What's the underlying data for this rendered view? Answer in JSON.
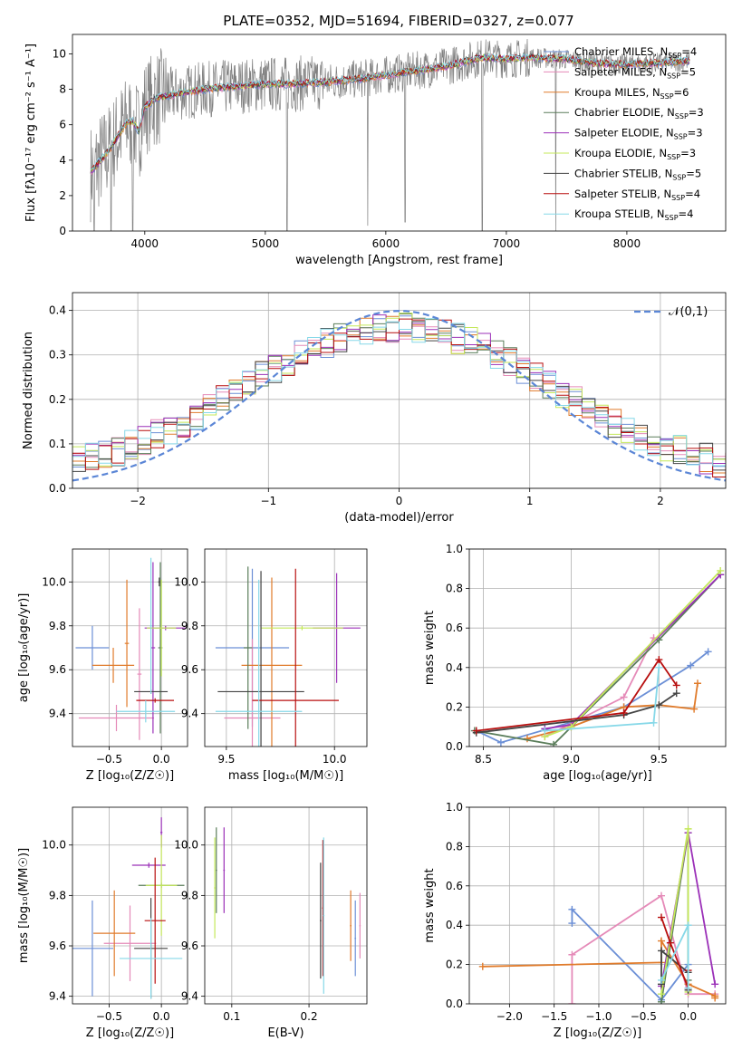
{
  "title": "PLATE=0352, MJD=51694, FIBERID=0327, z=0.077",
  "models": [
    {
      "name": "Chabrier MILES",
      "nssp": "4",
      "color": "#6b8fd6"
    },
    {
      "name": "Salpeter MILES",
      "nssp": "5",
      "color": "#e58ab8"
    },
    {
      "name": "Kroupa MILES",
      "nssp": "6",
      "color": "#e07b2b"
    },
    {
      "name": "Chabrier ELODIE",
      "nssp": "3",
      "color": "#5a7d5a"
    },
    {
      "name": "Salpeter ELODIE",
      "nssp": "3",
      "color": "#9b30b8"
    },
    {
      "name": "Kroupa ELODIE",
      "nssp": "3",
      "color": "#c4e85a"
    },
    {
      "name": "Chabrier STELIB",
      "nssp": "5",
      "color": "#444444"
    },
    {
      "name": "Salpeter STELIB",
      "nssp": "4",
      "color": "#b80f0f"
    },
    {
      "name": "Kroupa STELIB",
      "nssp": "4",
      "color": "#86d8e8"
    }
  ],
  "chart_data": [
    {
      "type": "line",
      "id": "spectrum",
      "xlabel": "wavelength [Angstrom, rest frame]",
      "ylabel": "Flux [f_λ10^-17 erg cm^-2 s^-1 A^-1]",
      "xlim": [
        3400,
        8820
      ],
      "ylim": [
        0,
        11.1
      ],
      "xticks": [
        4000,
        5000,
        6000,
        7000,
        8000
      ],
      "yticks": [
        0,
        2,
        4,
        6,
        8,
        10
      ],
      "grid": false,
      "legend": "right",
      "data_color": "#808080",
      "continuum": [
        [
          3550,
          3.3
        ],
        [
          3620,
          3.9
        ],
        [
          3700,
          4.5
        ],
        [
          3800,
          5.6
        ],
        [
          3850,
          6.1
        ],
        [
          3900,
          6.2
        ],
        [
          3950,
          5.6
        ],
        [
          4000,
          7.0
        ],
        [
          4100,
          7.5
        ],
        [
          4300,
          7.8
        ],
        [
          4500,
          8.0
        ],
        [
          4800,
          8.2
        ],
        [
          5000,
          8.3
        ],
        [
          5200,
          8.3
        ],
        [
          5500,
          8.4
        ],
        [
          5800,
          8.6
        ],
        [
          6000,
          8.8
        ],
        [
          6300,
          9.1
        ],
        [
          6500,
          9.3
        ],
        [
          6800,
          9.8
        ],
        [
          7000,
          9.7
        ],
        [
          7200,
          9.8
        ],
        [
          7500,
          9.7
        ],
        [
          7700,
          9.5
        ],
        [
          8000,
          9.4
        ],
        [
          8300,
          9.5
        ],
        [
          8500,
          9.6
        ]
      ],
      "dips": [
        [
          3580,
          0.0
        ],
        [
          3720,
          0.0
        ],
        [
          3900,
          0.0
        ],
        [
          5180,
          0.0
        ],
        [
          5850,
          0.3
        ],
        [
          6800,
          0.0
        ],
        [
          7410,
          0.0
        ],
        [
          6160,
          0.5
        ]
      ]
    },
    {
      "type": "bar",
      "id": "residuals",
      "xlabel": "(data-model)/error",
      "ylabel": "Normed distribution",
      "xlim": [
        -2.5,
        2.5
      ],
      "ylim": [
        0,
        0.44
      ],
      "xticks": [
        -2,
        -1,
        0,
        1,
        2
      ],
      "yticks": [
        0.0,
        0.1,
        0.2,
        0.3,
        0.4
      ],
      "grid": true,
      "legend": "top-right",
      "gaussian_label": "𝒩(0,1)",
      "gaussian_color": "#5b86d6",
      "bin_width": 0.1
    },
    {
      "type": "scatter",
      "id": "age_vs_Z",
      "xlabel": "Z [log10(Z/Z☉)]",
      "ylabel": "age  [log10(age/yr)]",
      "xlim": [
        -0.85,
        0.25
      ],
      "ylim": [
        9.25,
        10.15
      ],
      "xticks": [
        -0.5,
        0.0
      ],
      "yticks": [
        9.4,
        9.6,
        9.8,
        10.0
      ],
      "grid": true,
      "points": [
        {
          "model": 0,
          "x": -0.66,
          "y": 9.7,
          "ex": 0.16,
          "ey": 0.1
        },
        {
          "model": 1,
          "x": -0.43,
          "y": 9.38,
          "ex": 0.36,
          "ey": 0.06
        },
        {
          "model": 1,
          "x": -0.21,
          "y": 9.58,
          "ex": 0.02,
          "ey": 0.3
        },
        {
          "model": 2,
          "x": -0.46,
          "y": 9.62,
          "ex": 0.2,
          "ey": 0.08
        },
        {
          "model": 2,
          "x": -0.33,
          "y": 9.72,
          "ex": 0.02,
          "ey": 0.29
        },
        {
          "model": 3,
          "x": -0.01,
          "y": 9.7,
          "ex": 0.02,
          "ey": 0.39
        },
        {
          "model": 4,
          "x": 0.04,
          "y": 9.79,
          "ex": 0.2,
          "ey": 0.01
        },
        {
          "model": 4,
          "x": -0.08,
          "y": 9.7,
          "ex": 0.02,
          "ey": 0.39
        },
        {
          "model": 5,
          "x": 0.0,
          "y": 9.79,
          "ex": 0.14,
          "ey": 0.22
        },
        {
          "model": 6,
          "x": -0.1,
          "y": 9.5,
          "ex": 0.16,
          "ey": 0.01
        },
        {
          "model": 6,
          "x": -0.02,
          "y": 10.0,
          "ex": 0.01,
          "ey": 0.02
        },
        {
          "model": 7,
          "x": -0.06,
          "y": 9.46,
          "ex": 0.18,
          "ey": 0.01
        },
        {
          "model": 8,
          "x": -0.15,
          "y": 9.41,
          "ex": 0.28,
          "ey": 0.05
        },
        {
          "model": 8,
          "x": -0.1,
          "y": 9.8,
          "ex": 0.01,
          "ey": 0.31
        }
      ]
    },
    {
      "type": "scatter",
      "id": "age_vs_mass",
      "xlabel": "mass [log10(M/M☉)]",
      "ylabel": "",
      "xlim": [
        9.4,
        10.15
      ],
      "ylim": [
        9.25,
        10.15
      ],
      "xticks": [
        9.5,
        10.0
      ],
      "yticks": [
        9.4,
        9.6,
        9.8,
        10.0
      ],
      "grid": true,
      "points": [
        {
          "model": 0,
          "x": 9.62,
          "y": 9.7,
          "ex": 0.17,
          "ey": 0.36
        },
        {
          "model": 1,
          "x": 9.62,
          "y": 9.38,
          "ex": 0.13,
          "ey": 0.36
        },
        {
          "model": 2,
          "x": 9.71,
          "y": 9.62,
          "ex": 0.14,
          "ey": 0.4
        },
        {
          "model": 3,
          "x": 9.6,
          "y": 9.7,
          "ex": 0.02,
          "ey": 0.37
        },
        {
          "model": 4,
          "x": 10.01,
          "y": 9.79,
          "ex": 0.11,
          "ey": 0.25
        },
        {
          "model": 5,
          "x": 9.85,
          "y": 9.79,
          "ex": 0.19,
          "ey": 0.01
        },
        {
          "model": 6,
          "x": 9.66,
          "y": 9.5,
          "ex": 0.2,
          "ey": 0.55
        },
        {
          "model": 7,
          "x": 9.82,
          "y": 9.46,
          "ex": 0.2,
          "ey": 0.6
        },
        {
          "model": 8,
          "x": 9.65,
          "y": 9.41,
          "ex": 0.2,
          "ey": 0.6
        }
      ]
    },
    {
      "type": "line",
      "id": "weight_vs_age",
      "xlabel": "age  [log10(age/yr)]",
      "ylabel": "mass weight",
      "xlim": [
        8.42,
        9.88
      ],
      "ylim": [
        0,
        1.0
      ],
      "xticks": [
        8.5,
        9.0,
        9.5
      ],
      "yticks": [
        0.0,
        0.2,
        0.4,
        0.6,
        0.8,
        1.0
      ],
      "grid": true,
      "series": [
        {
          "model": 0,
          "x": [
            8.46,
            8.6,
            9.3,
            9.68,
            9.78
          ],
          "y": [
            0.08,
            0.02,
            0.2,
            0.41,
            0.48
          ]
        },
        {
          "model": 1,
          "x": [
            8.85,
            9.3,
            9.47
          ],
          "y": [
            0.05,
            0.25,
            0.55
          ]
        },
        {
          "model": 2,
          "x": [
            8.75,
            9.0,
            9.3,
            9.5,
            9.7,
            9.72
          ],
          "y": [
            0.04,
            0.1,
            0.2,
            0.21,
            0.19,
            0.32
          ]
        },
        {
          "model": 3,
          "x": [
            8.45,
            8.9,
            9.5,
            9.85
          ],
          "y": [
            0.08,
            0.01,
            0.54,
            0.87
          ]
        },
        {
          "model": 4,
          "x": [
            8.85,
            9.0,
            9.85
          ],
          "y": [
            0.09,
            0.11,
            0.87
          ]
        },
        {
          "model": 5,
          "x": [
            8.85,
            9.0,
            9.85
          ],
          "y": [
            0.05,
            0.1,
            0.89
          ]
        },
        {
          "model": 6,
          "x": [
            8.46,
            9.3,
            9.5,
            9.6
          ],
          "y": [
            0.07,
            0.16,
            0.21,
            0.27
          ]
        },
        {
          "model": 7,
          "x": [
            8.46,
            9.3,
            9.5,
            9.6
          ],
          "y": [
            0.08,
            0.17,
            0.44,
            0.31
          ]
        },
        {
          "model": 8,
          "x": [
            8.85,
            9.47,
            9.5
          ],
          "y": [
            0.08,
            0.12,
            0.4
          ]
        }
      ]
    },
    {
      "type": "scatter",
      "id": "mass_vs_Z",
      "xlabel": "Z [log10(Z/Z☉)]",
      "ylabel": "mass [log10(M/M☉)]",
      "xlim": [
        -0.85,
        0.25
      ],
      "ylim": [
        9.37,
        10.15
      ],
      "xticks": [
        -0.5,
        0.0
      ],
      "yticks": [
        9.4,
        9.6,
        9.8,
        10.0
      ],
      "grid": true,
      "points": [
        {
          "model": 0,
          "x": -0.66,
          "y": 9.59,
          "ex": 0.2,
          "ey": 0.19
        },
        {
          "model": 1,
          "x": -0.3,
          "y": 9.61,
          "ex": 0.25,
          "ey": 0.15
        },
        {
          "model": 2,
          "x": -0.45,
          "y": 9.65,
          "ex": 0.2,
          "ey": 0.17
        },
        {
          "model": 3,
          "x": 0.0,
          "y": 9.84,
          "ex": 0.22,
          "ey": 0.01
        },
        {
          "model": 4,
          "x": -0.12,
          "y": 9.92,
          "ex": 0.16,
          "ey": 0.01
        },
        {
          "model": 4,
          "x": 0.0,
          "y": 10.05,
          "ex": 0.01,
          "ey": 0.06
        },
        {
          "model": 5,
          "x": 0.0,
          "y": 9.84,
          "ex": 0.15,
          "ey": 0.2
        },
        {
          "model": 6,
          "x": -0.1,
          "y": 9.59,
          "ex": 0.16,
          "ey": 0.2
        },
        {
          "model": 7,
          "x": -0.06,
          "y": 9.7,
          "ex": 0.1,
          "ey": 0.25
        },
        {
          "model": 8,
          "x": -0.1,
          "y": 9.55,
          "ex": 0.3,
          "ey": 0.16
        }
      ]
    },
    {
      "type": "scatter",
      "id": "mass_vs_ebv",
      "xlabel": "E(B-V)",
      "ylabel": "",
      "xlim": [
        0.065,
        0.275
      ],
      "ylim": [
        9.37,
        10.15
      ],
      "xticks": [
        0.1,
        0.2
      ],
      "yticks": [
        9.4,
        9.6,
        9.8,
        10.0
      ],
      "grid": true,
      "points": [
        {
          "model": 0,
          "x": 0.26,
          "y": 9.63,
          "ex": 0.001,
          "ey": 0.15
        },
        {
          "model": 1,
          "x": 0.266,
          "y": 9.68,
          "ex": 0.001,
          "ey": 0.13
        },
        {
          "model": 2,
          "x": 0.254,
          "y": 9.68,
          "ex": 0.001,
          "ey": 0.14
        },
        {
          "model": 3,
          "x": 0.08,
          "y": 9.9,
          "ex": 0.001,
          "ey": 0.17
        },
        {
          "model": 4,
          "x": 0.09,
          "y": 9.9,
          "ex": 0.001,
          "ey": 0.17
        },
        {
          "model": 5,
          "x": 0.078,
          "y": 9.83,
          "ex": 0.001,
          "ey": 0.2
        },
        {
          "model": 6,
          "x": 0.215,
          "y": 9.7,
          "ex": 0.001,
          "ey": 0.23
        },
        {
          "model": 7,
          "x": 0.218,
          "y": 9.75,
          "ex": 0.001,
          "ey": 0.27
        },
        {
          "model": 8,
          "x": 0.219,
          "y": 9.72,
          "ex": 0.001,
          "ey": 0.31
        }
      ]
    },
    {
      "type": "line",
      "id": "weight_vs_Z",
      "xlabel": "Z [log10(Z/Z☉)]",
      "ylabel": "mass weight",
      "xlim": [
        -2.45,
        0.42
      ],
      "ylim": [
        0,
        1.0
      ],
      "xticks": [
        -2.0,
        -1.5,
        -1.0,
        -0.5,
        0.0
      ],
      "yticks": [
        0.0,
        0.2,
        0.4,
        0.6,
        0.8,
        1.0
      ],
      "grid": true,
      "series": [
        {
          "model": 0,
          "x": [
            -1.3,
            -1.3,
            -0.3,
            0.0,
            0.0
          ],
          "y": [
            0.41,
            0.48,
            0.02,
            0.2,
            0.08
          ]
        },
        {
          "model": 1,
          "x": [
            -1.3,
            -1.3,
            -0.3,
            0.0,
            0.3
          ],
          "y": [
            0.0,
            0.25,
            0.55,
            0.05,
            0.05
          ]
        },
        {
          "model": 2,
          "x": [
            -2.3,
            -0.3,
            -0.3,
            0.0,
            0.3,
            0.3
          ],
          "y": [
            0.19,
            0.21,
            0.32,
            0.1,
            0.04,
            0.03
          ]
        },
        {
          "model": 3,
          "x": [
            -0.3,
            0.0,
            0.0
          ],
          "y": [
            0.01,
            0.87,
            0.12
          ]
        },
        {
          "model": 4,
          "x": [
            -0.3,
            0.0,
            0.3
          ],
          "y": [
            0.09,
            0.87,
            0.1
          ]
        },
        {
          "model": 5,
          "x": [
            -0.3,
            0.0,
            0.0
          ],
          "y": [
            0.05,
            0.89,
            0.06
          ]
        },
        {
          "model": 6,
          "x": [
            -0.3,
            -0.3,
            0.0,
            0.0
          ],
          "y": [
            0.1,
            0.27,
            0.16,
            0.07
          ]
        },
        {
          "model": 7,
          "x": [
            -0.3,
            -0.2,
            0.0,
            0.0
          ],
          "y": [
            0.44,
            0.31,
            0.08,
            0.17
          ]
        },
        {
          "model": 8,
          "x": [
            -0.3,
            0.0,
            0.0
          ],
          "y": [
            0.12,
            0.4,
            0.08
          ]
        }
      ]
    }
  ]
}
